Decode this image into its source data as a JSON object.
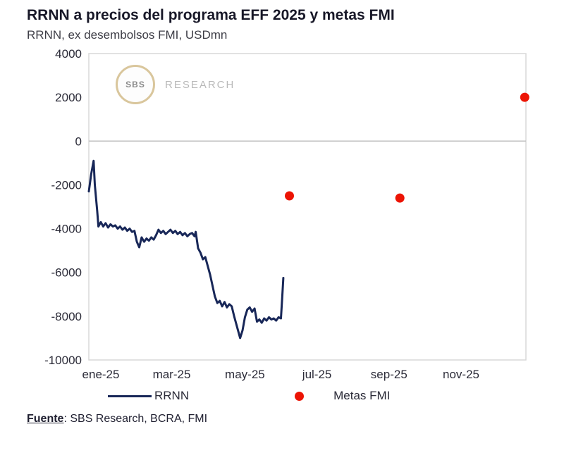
{
  "title": "RRNN a precios del programa EFF 2025 y metas FMI",
  "subtitle": "RRNN, ex desembolsos FMI, USDmn",
  "watermark": {
    "logo_text": "SBS",
    "label": "RESEARCH"
  },
  "legend": [
    {
      "label": "RRNN",
      "type": "line",
      "color": "#182758"
    },
    {
      "label": "Metas FMI",
      "type": "dot",
      "color": "#ec1404"
    }
  ],
  "source": {
    "prefix": "Fuente",
    "text": ": SBS Research, BCRA, FMI"
  },
  "colors": {
    "line": "#182758",
    "dot": "#ec1404",
    "border": "#d9d9d9",
    "zero_line": "#bfbfbf"
  },
  "chart_data": {
    "type": "line",
    "title": "RRNN a precios del programa EFF 2025 y metas FMI",
    "subtitle": "RRNN, ex desembolsos FMI, USDmn",
    "xlabel": "",
    "ylabel": "USDmn",
    "ylim": [
      -10000,
      4000
    ],
    "yticks": [
      4000,
      2000,
      0,
      -2000,
      -4000,
      -6000,
      -8000,
      -10000
    ],
    "xmax": 365,
    "xticks": [
      {
        "label": "ene-25",
        "day": 11
      },
      {
        "label": "mar-25",
        "day": 70
      },
      {
        "label": "may-25",
        "day": 131
      },
      {
        "label": "jul-25",
        "day": 191
      },
      {
        "label": "sep-25",
        "day": 251
      },
      {
        "label": "nov-25",
        "day": 311
      }
    ],
    "grid": false,
    "legend_position": "bottom",
    "series": [
      {
        "name": "RRNN",
        "type": "line",
        "color": "#182758",
        "x": [
          1,
          3,
          5,
          6,
          8,
          9,
          11,
          13,
          15,
          17,
          19,
          21,
          23,
          25,
          27,
          29,
          31,
          33,
          35,
          37,
          39,
          41,
          43,
          45,
          47,
          49,
          51,
          53,
          55,
          57,
          59,
          61,
          63,
          65,
          67,
          69,
          71,
          73,
          75,
          77,
          79,
          81,
          83,
          85,
          87,
          89,
          90,
          92,
          94,
          96,
          98,
          100,
          102,
          104,
          106,
          108,
          110,
          112,
          114,
          116,
          118,
          120,
          122,
          124,
          126,
          127,
          129,
          131,
          133,
          135,
          137,
          139,
          141,
          143,
          145,
          147,
          149,
          151,
          153,
          155,
          157,
          159,
          161,
          162,
          163
        ],
        "values": [
          -2300,
          -1500,
          -900,
          -2000,
          -3200,
          -3900,
          -3700,
          -3900,
          -3750,
          -3950,
          -3800,
          -3900,
          -3850,
          -4000,
          -3900,
          -4050,
          -3950,
          -4100,
          -4000,
          -4150,
          -4100,
          -4600,
          -4850,
          -4400,
          -4600,
          -4450,
          -4550,
          -4400,
          -4500,
          -4300,
          -4050,
          -4200,
          -4100,
          -4250,
          -4150,
          -4050,
          -4200,
          -4100,
          -4250,
          -4150,
          -4300,
          -4200,
          -4350,
          -4250,
          -4200,
          -4350,
          -4150,
          -4900,
          -5100,
          -5400,
          -5300,
          -5700,
          -6100,
          -6600,
          -7100,
          -7400,
          -7300,
          -7550,
          -7350,
          -7600,
          -7450,
          -7550,
          -8000,
          -8400,
          -8800,
          -9000,
          -8650,
          -8050,
          -7700,
          -7600,
          -7800,
          -7650,
          -8250,
          -8150,
          -8300,
          -8100,
          -8200,
          -8050,
          -8150,
          -8100,
          -8200,
          -8050,
          -8100,
          -7200,
          -6250
        ]
      },
      {
        "name": "Metas FMI",
        "type": "scatter",
        "color": "#ec1404",
        "x": [
          168,
          260,
          364
        ],
        "values": [
          -2500,
          -2600,
          2000
        ]
      }
    ]
  }
}
